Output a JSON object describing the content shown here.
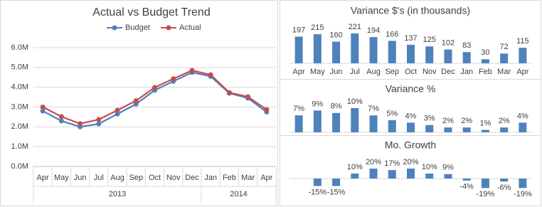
{
  "chart_data": [
    {
      "type": "line",
      "title": "Actual vs Budget Trend",
      "groups": [
        {
          "label": "2013",
          "categories": [
            "Apr",
            "May",
            "Jun",
            "Jul",
            "Aug",
            "Sep",
            "Oct",
            "Nov",
            "Dec"
          ]
        },
        {
          "label": "2014",
          "categories": [
            "Jan",
            "Feb",
            "Mar",
            "Apr"
          ]
        }
      ],
      "series": [
        {
          "name": "Budget",
          "color": "#4f81bd",
          "values": [
            2.8,
            2.3,
            2.0,
            2.15,
            2.65,
            3.15,
            3.85,
            4.3,
            4.75,
            4.55,
            3.7,
            3.45,
            2.75
          ]
        },
        {
          "name": "Actual",
          "color": "#c0504d",
          "values": [
            3.0,
            2.52,
            2.16,
            2.37,
            2.84,
            3.32,
            3.99,
            4.43,
            4.85,
            4.63,
            3.73,
            3.52,
            2.87
          ]
        }
      ],
      "ylim": [
        0,
        6
      ],
      "yticks": [
        {
          "value": 0,
          "label": "0.0M"
        },
        {
          "value": 1,
          "label": "1.0M"
        },
        {
          "value": 2,
          "label": "2.0M"
        },
        {
          "value": 3,
          "label": "3.0M"
        },
        {
          "value": 4,
          "label": "4.0M"
        },
        {
          "value": 5,
          "label": "5.0M"
        },
        {
          "value": 6,
          "label": "6.0M"
        }
      ],
      "grid": true,
      "legend": "top"
    },
    {
      "type": "bar",
      "title": "Variance $'s (in thousands)",
      "color": "#4f81bd",
      "categories": [
        "Apr",
        "May",
        "Jun",
        "Jul",
        "Aug",
        "Sep",
        "Oct",
        "Nov",
        "Dec",
        "Jan",
        "Feb",
        "Mar",
        "Apr"
      ],
      "values": [
        197,
        215,
        160,
        221,
        194,
        166,
        137,
        125,
        102,
        83,
        30,
        72,
        115
      ]
    },
    {
      "type": "bar",
      "title": "Variance %",
      "color": "#4f81bd",
      "values": [
        7,
        9,
        8,
        10,
        7,
        5,
        4,
        3,
        2,
        2,
        1,
        2,
        4
      ],
      "value_labels": [
        "7%",
        "9%",
        "8%",
        "10%",
        "7%",
        "5%",
        "4%",
        "3%",
        "2%",
        "2%",
        "1%",
        "2%",
        "4%"
      ]
    },
    {
      "type": "bar",
      "title": "Mo. Growth",
      "color": "#4f81bd",
      "values": [
        null,
        -15,
        -15,
        10,
        20,
        17,
        20,
        10,
        9,
        -4,
        -19,
        -6,
        -19
      ],
      "value_labels": [
        null,
        "-15%",
        "-15%",
        "10%",
        "20%",
        "17%",
        "20%",
        "10%",
        "9%",
        "-4%",
        "-19%",
        "-6%",
        "-19%"
      ]
    }
  ]
}
